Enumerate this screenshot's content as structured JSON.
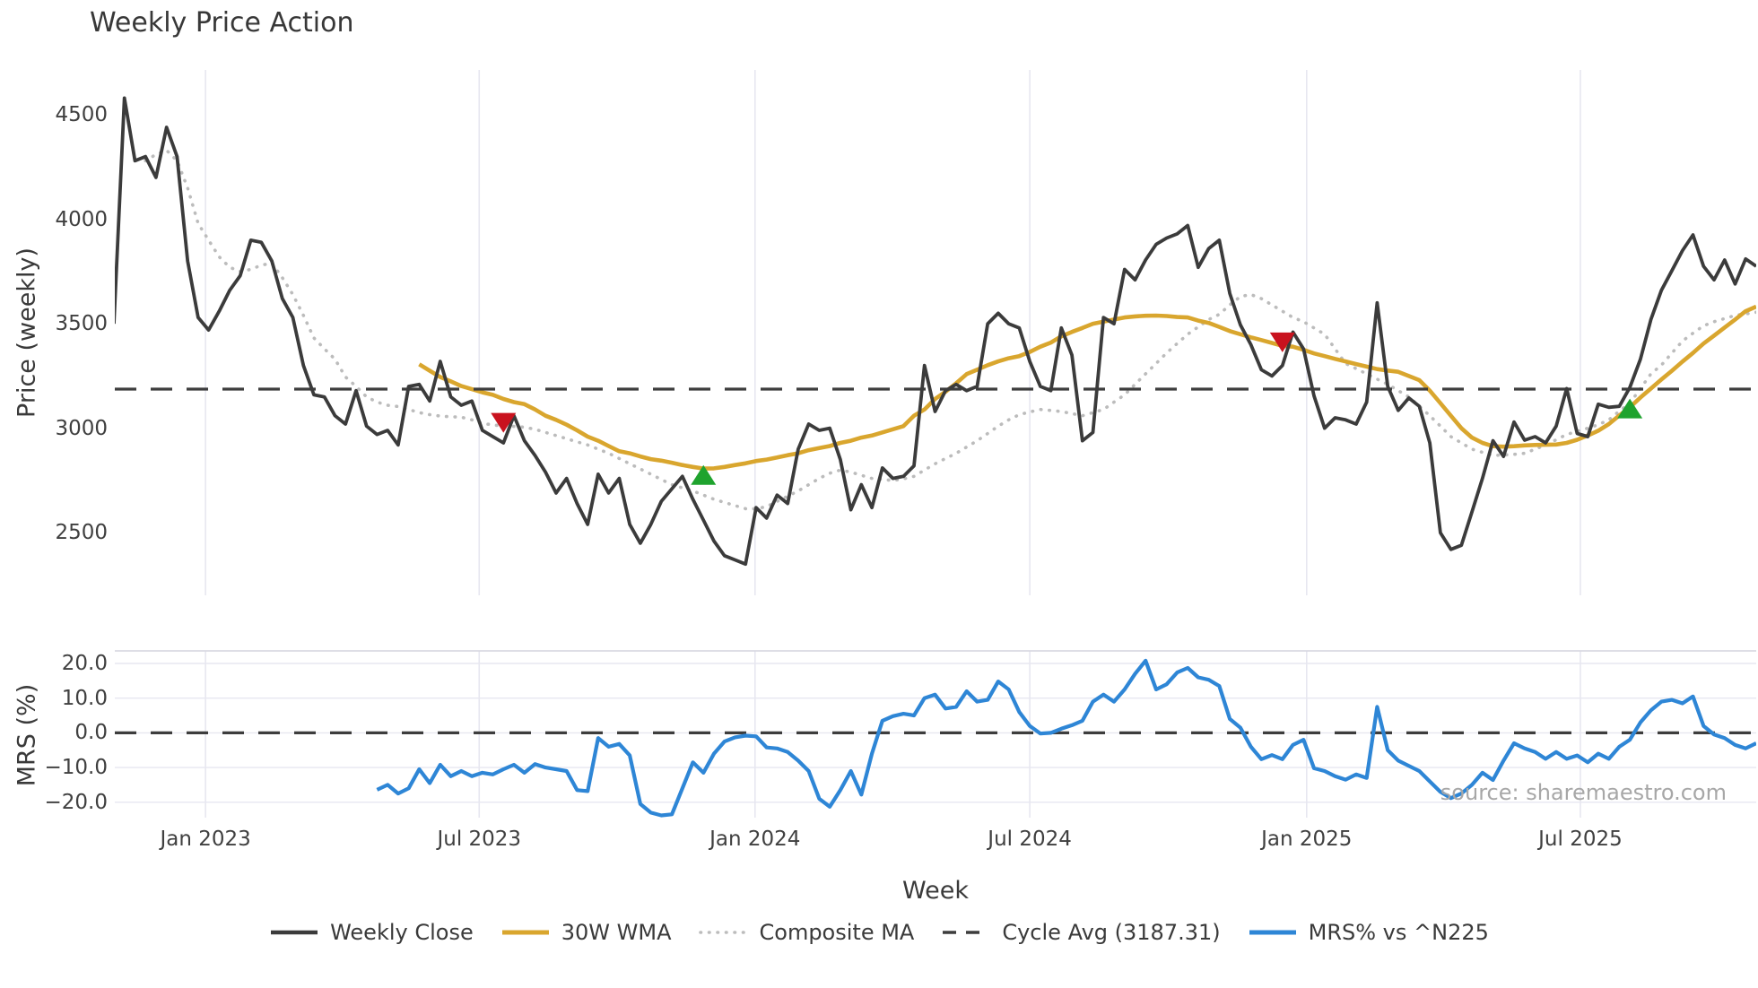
{
  "title": "Weekly Price Action",
  "watermark": "source: sharemaestro.com",
  "axes": {
    "price_axis_label": "Price (weekly)",
    "mrs_axis_label": "MRS (%)",
    "x_axis_label": "Week",
    "price_ticks": [
      4500,
      4000,
      3500,
      3000,
      2500
    ],
    "mrs_ticks": [
      "20.0",
      "10.0",
      "0.0",
      "−10.0",
      "−20.0"
    ],
    "mrs_tick_values": [
      20,
      10,
      0,
      -10,
      -20
    ],
    "x_ticks": [
      "Jan 2023",
      "Jul 2023",
      "Jan 2024",
      "Jul 2024",
      "Jan 2025",
      "Jul 2025"
    ],
    "x_tick_weeks": [
      8.7,
      34.7,
      60.9,
      87.0,
      113.3,
      139.3
    ]
  },
  "legend": {
    "weekly_close": "Weekly Close",
    "wma": "30W WMA",
    "composite": "Composite MA",
    "cycle_avg": "Cycle Avg (3187.31)",
    "mrs": "MRS% vs ^N225"
  },
  "colors": {
    "close": "#3b3b3b",
    "wma": "#d9a62e",
    "composite": "#bcbcbc",
    "cycle": "#3d3d3d",
    "mrs": "#2e86d6",
    "buy": "#1fa32e",
    "sell": "#c9121e",
    "grid": "#e7e7f0",
    "panel_edge": "#d9d9e2"
  },
  "chart_data": [
    {
      "type": "line",
      "panel": "price",
      "title": "Weekly Price Action",
      "xlabel": "Week",
      "ylabel": "Price (weekly)",
      "ylim": [
        2200,
        4715
      ],
      "x_unit": "week_index (weekly closes, ~Oct 2022 → ~Oct 2025)",
      "cycle_avg": 3187.31,
      "legend_position": "bottom",
      "grid": "vertical-only",
      "series": [
        {
          "name": "Weekly Close",
          "start_week": 0,
          "values": [
            3500,
            4580,
            4280,
            4300,
            4200,
            4440,
            4300,
            3800,
            3530,
            3470,
            3560,
            3660,
            3730,
            3900,
            3890,
            3800,
            3620,
            3530,
            3300,
            3160,
            3150,
            3060,
            3020,
            3180,
            3010,
            2970,
            2990,
            2920,
            3200,
            3210,
            3130,
            3320,
            3150,
            3110,
            3130,
            2990,
            2960,
            2930,
            3060,
            2940,
            2870,
            2790,
            2690,
            2760,
            2640,
            2540,
            2780,
            2690,
            2760,
            2540,
            2450,
            2540,
            2650,
            2710,
            2770,
            2660,
            2560,
            2460,
            2390,
            2370,
            2350,
            2620,
            2570,
            2680,
            2640,
            2900,
            3020,
            2990,
            3000,
            2850,
            2610,
            2730,
            2620,
            2810,
            2760,
            2770,
            2820,
            3300,
            3080,
            3180,
            3210,
            3180,
            3200,
            3500,
            3550,
            3500,
            3480,
            3320,
            3200,
            3180,
            3480,
            3350,
            2940,
            2980,
            3530,
            3500,
            3760,
            3710,
            3805,
            3880,
            3910,
            3930,
            3970,
            3770,
            3860,
            3900,
            3645,
            3495,
            3400,
            3280,
            3250,
            3300,
            3460,
            3380,
            3155,
            3000,
            3050,
            3040,
            3020,
            3125,
            3600,
            3200,
            3085,
            3145,
            3105,
            2930,
            2500,
            2420,
            2440,
            2600,
            2760,
            2940,
            2865,
            3030,
            2943,
            2960,
            2930,
            3010,
            3190,
            2975,
            2960,
            3115,
            3100,
            3105,
            3195,
            3330,
            3520,
            3660,
            3755,
            3850,
            3925,
            3775,
            3710,
            3805,
            3690,
            3810,
            3775
          ]
        },
        {
          "name": "30W WMA",
          "start_week": 29,
          "values": [
            3306,
            3275,
            3245,
            3224,
            3202,
            3187,
            3172,
            3160,
            3140,
            3125,
            3115,
            3090,
            3060,
            3040,
            3017,
            2990,
            2960,
            2940,
            2915,
            2890,
            2880,
            2865,
            2852,
            2845,
            2835,
            2824,
            2815,
            2807,
            2808,
            2815,
            2824,
            2832,
            2843,
            2850,
            2860,
            2871,
            2880,
            2895,
            2905,
            2915,
            2930,
            2940,
            2955,
            2965,
            2980,
            2995,
            3010,
            3060,
            3090,
            3140,
            3175,
            3215,
            3259,
            3280,
            3302,
            3320,
            3335,
            3345,
            3365,
            3390,
            3410,
            3440,
            3461,
            3480,
            3500,
            3510,
            3520,
            3530,
            3535,
            3538,
            3539,
            3537,
            3532,
            3530,
            3515,
            3504,
            3485,
            3465,
            3450,
            3435,
            3422,
            3408,
            3394,
            3390,
            3375,
            3358,
            3345,
            3332,
            3320,
            3307,
            3295,
            3283,
            3276,
            3270,
            3250,
            3230,
            3180,
            3120,
            3060,
            3000,
            2955,
            2930,
            2914,
            2912,
            2914,
            2918,
            2920,
            2921,
            2922,
            2930,
            2945,
            2965,
            2988,
            3020,
            3061,
            3100,
            3147,
            3190,
            3233,
            3275,
            3319,
            3360,
            3405,
            3443,
            3482,
            3520,
            3560,
            3582
          ]
        },
        {
          "name": "Composite MA",
          "start_week": 3,
          "values": [
            4280,
            4310,
            4330,
            4280,
            4150,
            3980,
            3900,
            3820,
            3770,
            3750,
            3760,
            3780,
            3790,
            3720,
            3640,
            3540,
            3432,
            3380,
            3330,
            3245,
            3200,
            3150,
            3125,
            3110,
            3104,
            3090,
            3075,
            3065,
            3058,
            3055,
            3053,
            3040,
            3023,
            3016,
            3010,
            3009,
            3005,
            2995,
            2980,
            2965,
            2950,
            2935,
            2920,
            2900,
            2880,
            2855,
            2830,
            2805,
            2780,
            2755,
            2730,
            2715,
            2700,
            2680,
            2660,
            2645,
            2630,
            2615,
            2615,
            2625,
            2650,
            2675,
            2700,
            2730,
            2760,
            2785,
            2800,
            2790,
            2775,
            2760,
            2755,
            2750,
            2758,
            2770,
            2800,
            2830,
            2855,
            2880,
            2910,
            2940,
            2975,
            3010,
            3040,
            3065,
            3078,
            3090,
            3085,
            3080,
            3070,
            3060,
            3075,
            3090,
            3125,
            3160,
            3210,
            3260,
            3310,
            3360,
            3405,
            3450,
            3485,
            3520,
            3545,
            3590,
            3630,
            3640,
            3620,
            3590,
            3560,
            3530,
            3510,
            3480,
            3450,
            3380,
            3310,
            3285,
            3260,
            3235,
            3210,
            3180,
            3150,
            3105,
            3060,
            3010,
            2960,
            2930,
            2900,
            2885,
            2870,
            2872,
            2875,
            2880,
            2900,
            2920,
            2945,
            2970,
            2985,
            3000,
            3017,
            3040,
            3082,
            3120,
            3190,
            3260,
            3302,
            3360,
            3417,
            3455,
            3490,
            3510,
            3525,
            3540,
            3547,
            3555
          ]
        }
      ],
      "markers": {
        "sell": [
          {
            "week": 37,
            "value": 3030
          },
          {
            "week": 111,
            "value": 3415
          }
        ],
        "buy": [
          {
            "week": 56,
            "value": 2772
          },
          {
            "week": 144,
            "value": 3090
          }
        ]
      }
    },
    {
      "type": "line",
      "panel": "mrs",
      "ylabel": "MRS (%)",
      "ylim": [
        -24.4,
        23.1
      ],
      "zero_line": 0,
      "grid": "horizontal-and-vertical",
      "series": [
        {
          "name": "MRS% vs ^N225",
          "start_week": 25,
          "values": [
            -16.4,
            -15.0,
            -17.5,
            -16.0,
            -10.5,
            -14.5,
            -9.2,
            -12.5,
            -11.0,
            -12.5,
            -11.5,
            -12.0,
            -10.5,
            -9.2,
            -11.5,
            -9.0,
            -10.0,
            -10.5,
            -11.0,
            -16.5,
            -16.8,
            -1.5,
            -4.0,
            -3.2,
            -6.5,
            -20.5,
            -23.0,
            -23.8,
            -23.5,
            -16.0,
            -8.5,
            -11.5,
            -6.0,
            -2.5,
            -1.3,
            -0.8,
            -1.0,
            -4.2,
            -4.5,
            -5.5,
            -8.0,
            -11.0,
            -19.0,
            -21.3,
            -16.5,
            -11.0,
            -17.8,
            -6.0,
            3.5,
            4.8,
            5.5,
            5.0,
            10.0,
            11.0,
            7.0,
            7.5,
            12.0,
            9.0,
            9.5,
            14.8,
            12.5,
            6.0,
            2.0,
            -0.2,
            0.0,
            1.2,
            2.2,
            3.5,
            9.0,
            11.0,
            9.0,
            12.5,
            17.0,
            20.8,
            12.5,
            14.0,
            17.4,
            18.7,
            16.0,
            15.3,
            13.5,
            4.0,
            1.5,
            -4.0,
            -7.6,
            -6.4,
            -7.6,
            -3.5,
            -2.0,
            -10.2,
            -11.0,
            -12.5,
            -13.5,
            -12.0,
            -13.0,
            7.5,
            -5.0,
            -8.0,
            -9.5,
            -11.0,
            -14.0,
            -17.0,
            -18.8,
            -17.5,
            -15.0,
            -11.5,
            -13.6,
            -8.0,
            -3.0,
            -4.5,
            -5.5,
            -7.5,
            -5.5,
            -7.5,
            -6.5,
            -8.5,
            -6.0,
            -7.5,
            -4.0,
            -2.0,
            3.0,
            6.5,
            9.0,
            9.5,
            8.5,
            10.5,
            2.0,
            -0.5,
            -1.5,
            -3.5,
            -4.5,
            -3.0
          ]
        }
      ]
    }
  ]
}
